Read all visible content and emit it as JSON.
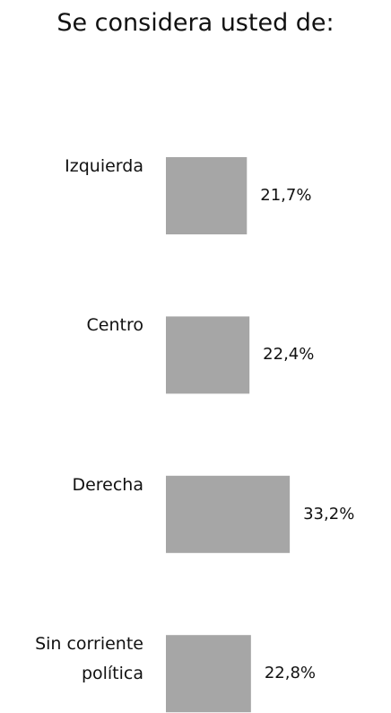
{
  "chart_data": {
    "type": "bar",
    "orientation": "horizontal",
    "title": "Se considera usted de:",
    "categories": [
      "Izquierda",
      "Centro",
      "Derecha",
      "Sin corriente política"
    ],
    "values": [
      21.7,
      22.4,
      33.2,
      22.8
    ],
    "value_labels": [
      "21,7%",
      "22,4%",
      "33,2%",
      "22,8%"
    ],
    "color": "#a6a6a6"
  }
}
